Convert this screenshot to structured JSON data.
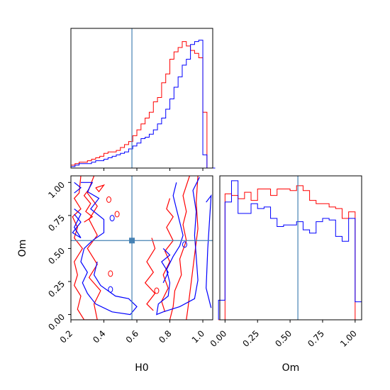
{
  "chart_data": [
    {
      "type": "histogram",
      "panel": "marginal-H0",
      "x_range": [
        0.2,
        1.06
      ],
      "bins": [
        0.2,
        0.225,
        0.25,
        0.275,
        0.3,
        0.325,
        0.35,
        0.375,
        0.4,
        0.425,
        0.45,
        0.475,
        0.5,
        0.525,
        0.55,
        0.575,
        0.6,
        0.625,
        0.65,
        0.675,
        0.7,
        0.725,
        0.75,
        0.775,
        0.8,
        0.825,
        0.85,
        0.875,
        0.9,
        0.925,
        0.95,
        0.975,
        1.0,
        1.025,
        1.05
      ],
      "series": [
        {
          "color": "#ff0000",
          "values": [
            0.02,
            0.03,
            0.04,
            0.04,
            0.05,
            0.06,
            0.07,
            0.08,
            0.1,
            0.11,
            0.11,
            0.12,
            0.14,
            0.16,
            0.18,
            0.22,
            0.26,
            0.3,
            0.34,
            0.38,
            0.45,
            0.48,
            0.58,
            0.64,
            0.74,
            0.79,
            0.82,
            0.86,
            0.83,
            0.8,
            0.78,
            0.75,
            0.38,
            0.0,
            0.0
          ]
        },
        {
          "color": "#0000ff",
          "values": [
            0.01,
            0.02,
            0.03,
            0.03,
            0.03,
            0.04,
            0.05,
            0.05,
            0.06,
            0.07,
            0.08,
            0.09,
            0.1,
            0.11,
            0.13,
            0.15,
            0.17,
            0.2,
            0.21,
            0.23,
            0.26,
            0.3,
            0.34,
            0.4,
            0.47,
            0.55,
            0.62,
            0.7,
            0.74,
            0.84,
            0.86,
            0.87,
            0.09,
            0.0,
            0.0
          ]
        }
      ],
      "truth_x": 0.57
    },
    {
      "type": "contour",
      "panel": "joint-H0-Om",
      "xlabel": "H0",
      "ylabel": "Om",
      "xlim": [
        0.2,
        1.06
      ],
      "ylim": [
        -0.04,
        1.05
      ],
      "xticks": [
        "0.2",
        "0.4",
        "0.6",
        "0.8",
        "1.0"
      ],
      "yticks": [
        "0.00",
        "0.25",
        "0.50",
        "0.75",
        "1.00"
      ],
      "truth": {
        "H0": 0.57,
        "Om": 0.56
      },
      "series": [
        {
          "color": "#ff0000",
          "contour_levels": 3
        },
        {
          "color": "#0000ff",
          "contour_levels": 3
        }
      ]
    },
    {
      "type": "histogram",
      "panel": "marginal-Om",
      "xlabel": "Om",
      "x_range": [
        -0.04,
        1.05
      ],
      "xticks": [
        "0.00",
        "0.25",
        "0.50",
        "0.75",
        "1.00"
      ],
      "bins": [
        -0.05,
        0.0,
        0.05,
        0.1,
        0.15,
        0.2,
        0.25,
        0.3,
        0.35,
        0.4,
        0.45,
        0.5,
        0.55,
        0.6,
        0.65,
        0.7,
        0.75,
        0.8,
        0.85,
        0.9,
        0.95,
        1.0,
        1.05
      ],
      "series": [
        {
          "color": "#ff0000",
          "values": [
            0.0,
            0.77,
            0.76,
            0.74,
            0.78,
            0.73,
            0.8,
            0.8,
            0.76,
            0.8,
            0.8,
            0.79,
            0.82,
            0.79,
            0.73,
            0.71,
            0.71,
            0.69,
            0.68,
            0.62,
            0.66,
            0.0
          ]
        },
        {
          "color": "#0000ff",
          "values": [
            0.12,
            0.72,
            0.85,
            0.65,
            0.65,
            0.71,
            0.68,
            0.69,
            0.62,
            0.57,
            0.58,
            0.58,
            0.6,
            0.55,
            0.53,
            0.6,
            0.62,
            0.61,
            0.51,
            0.48,
            0.62,
            0.11
          ]
        }
      ],
      "truth_x": 0.56
    }
  ],
  "colors": {
    "truth": "#4682b4",
    "series_a": "#ff0000",
    "series_b": "#0000ff"
  }
}
